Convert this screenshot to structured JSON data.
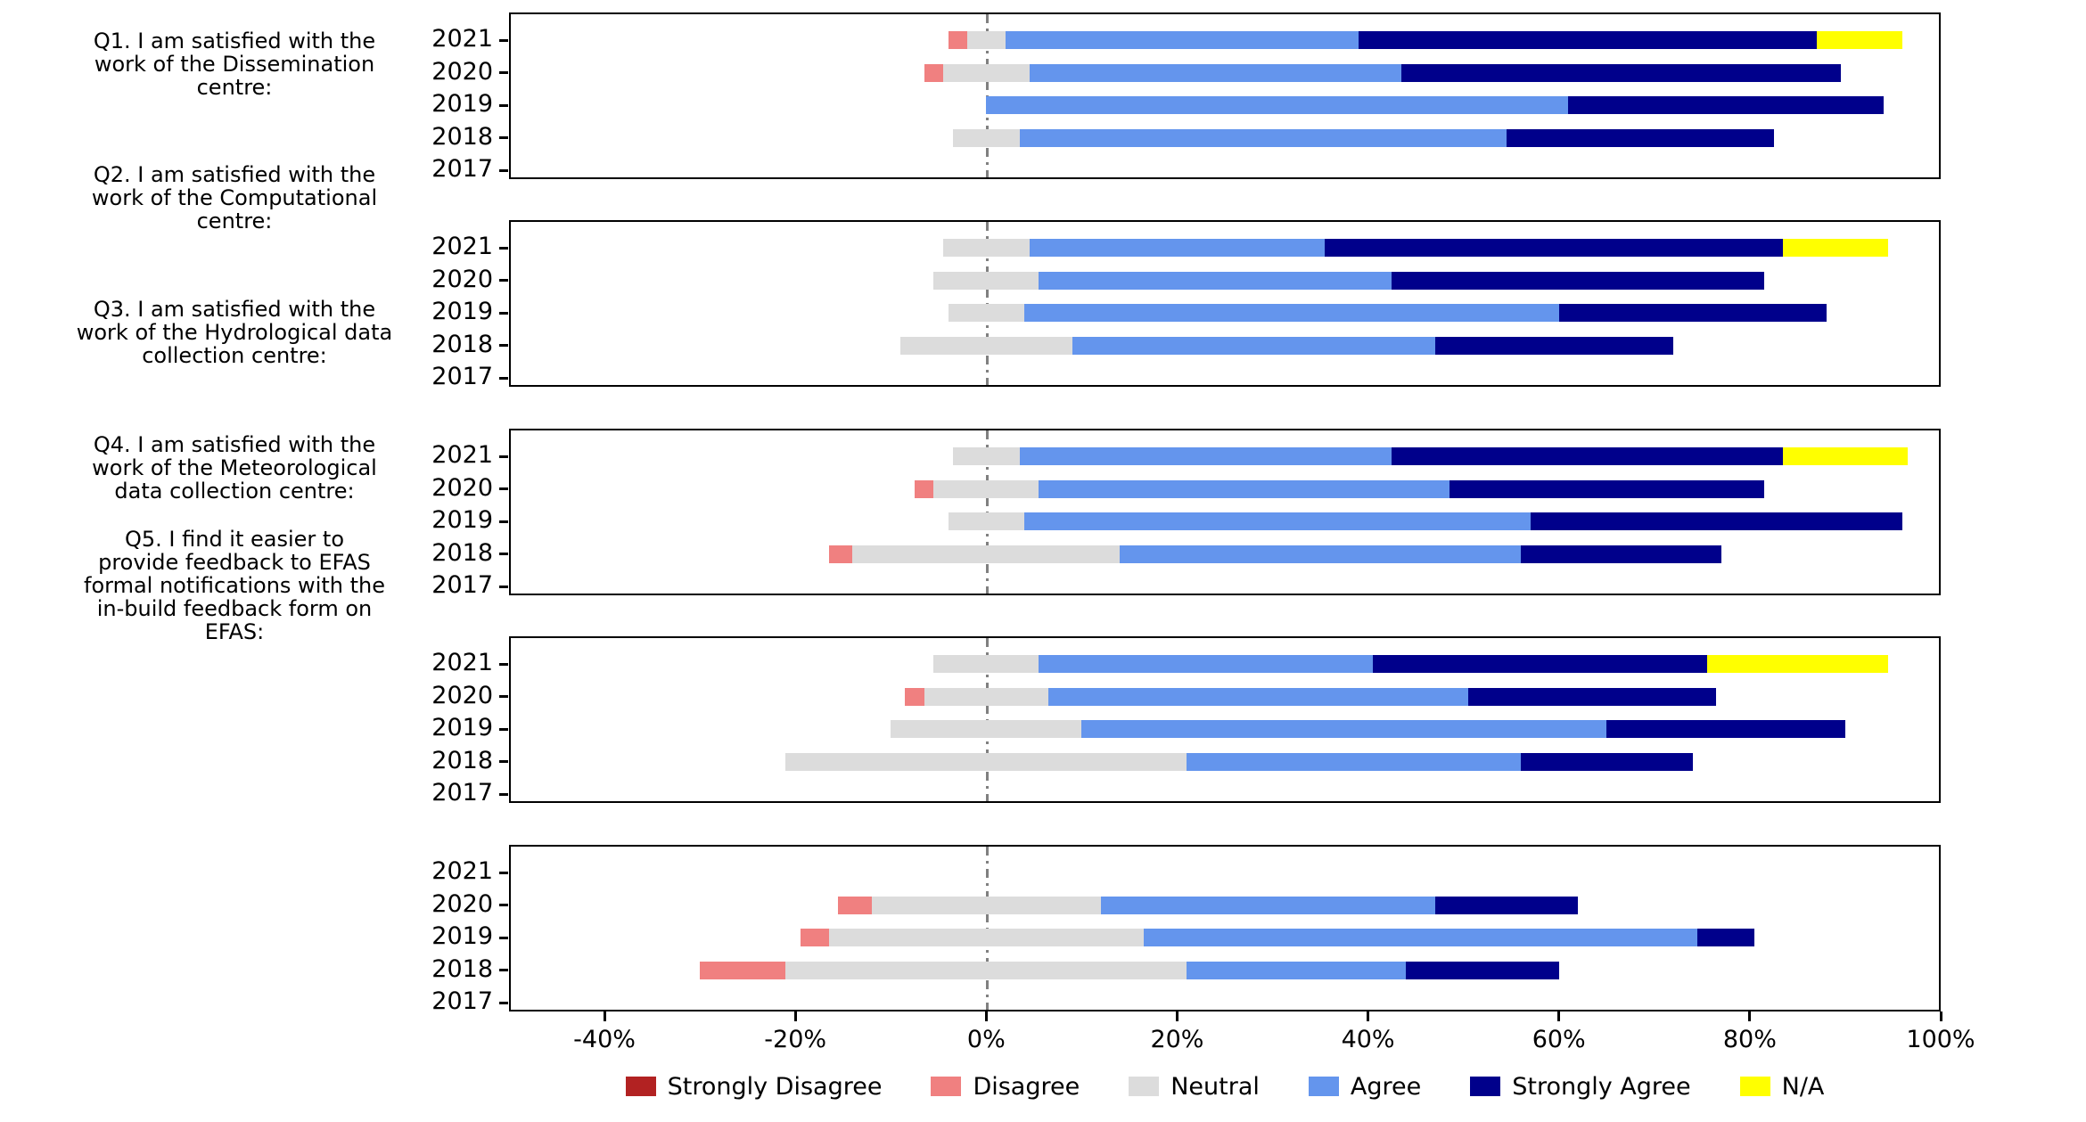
{
  "figure": {
    "background": "#ffffff",
    "zero_line_color": "#808080",
    "axis_color": "#000000"
  },
  "chart_data": {
    "type": "bar",
    "subtype": "horizontal-diverging-stacked-likert",
    "unit": "%",
    "xlim": [
      -50,
      100
    ],
    "x_tick_values": [
      -40,
      -20,
      0,
      20,
      40,
      60,
      80,
      100
    ],
    "x_tick_labels": [
      "-40%",
      "-20%",
      "0%",
      "20%",
      "40%",
      "60%",
      "80%",
      "100%"
    ],
    "grid": false,
    "zero_reference_line": true,
    "neutral_split_on_zero": true,
    "stack_order": [
      "strongly_disagree",
      "disagree",
      "neutral",
      "agree",
      "strongly_agree",
      "na"
    ],
    "colors": {
      "strongly_disagree": "#b22222",
      "disagree": "#f08080",
      "neutral": "#dcdcdc",
      "agree": "#6495ed",
      "strongly_agree": "#00008b",
      "na": "#ffff00"
    },
    "years": [
      "2021",
      "2020",
      "2019",
      "2018",
      "2017"
    ],
    "panels": [
      {
        "id": "q1",
        "question": "Q1. I am satisfied with the work of the Dissemination centre:",
        "question_lines": [
          "Q1. I am satisfied with the",
          "work of the Dissemination",
          "centre:"
        ],
        "rows": [
          {
            "year": "2021",
            "strongly_disagree": 0,
            "disagree": 2,
            "neutral": 4,
            "agree": 37,
            "strongly_agree": 48,
            "na": 9
          },
          {
            "year": "2020",
            "strongly_disagree": 0,
            "disagree": 2,
            "neutral": 9,
            "agree": 39,
            "strongly_agree": 46,
            "na": 0
          },
          {
            "year": "2019",
            "strongly_disagree": 0,
            "disagree": 0,
            "neutral": 0,
            "agree": 61,
            "strongly_agree": 33,
            "na": 0
          },
          {
            "year": "2018",
            "strongly_disagree": 0,
            "disagree": 0,
            "neutral": 7,
            "agree": 51,
            "strongly_agree": 28,
            "na": 0
          },
          {
            "year": "2017",
            "strongly_disagree": 0,
            "disagree": 0,
            "neutral": 0,
            "agree": 0,
            "strongly_agree": 0,
            "na": 0
          }
        ]
      },
      {
        "id": "q2",
        "question": "Q2. I am satisfied with the work of the Computational centre:",
        "question_lines": [
          "Q2. I am satisfied with the",
          "work of the Computational",
          "centre:"
        ],
        "rows": [
          {
            "year": "2021",
            "strongly_disagree": 0,
            "disagree": 0,
            "neutral": 9,
            "agree": 31,
            "strongly_agree": 48,
            "na": 11
          },
          {
            "year": "2020",
            "strongly_disagree": 0,
            "disagree": 0,
            "neutral": 11,
            "agree": 37,
            "strongly_agree": 39,
            "na": 0
          },
          {
            "year": "2019",
            "strongly_disagree": 0,
            "disagree": 0,
            "neutral": 8,
            "agree": 56,
            "strongly_agree": 28,
            "na": 0
          },
          {
            "year": "2018",
            "strongly_disagree": 0,
            "disagree": 0,
            "neutral": 18,
            "agree": 38,
            "strongly_agree": 25,
            "na": 0
          },
          {
            "year": "2017",
            "strongly_disagree": 0,
            "disagree": 0,
            "neutral": 0,
            "agree": 0,
            "strongly_agree": 0,
            "na": 0
          }
        ]
      },
      {
        "id": "q3",
        "question": "Q3. I am satisfied with the work of the Hydrological data collection centre:",
        "question_lines": [
          "Q3. I am satisfied with the",
          "work of the Hydrological data",
          "collection centre:"
        ],
        "rows": [
          {
            "year": "2021",
            "strongly_disagree": 0,
            "disagree": 0,
            "neutral": 7,
            "agree": 39,
            "strongly_agree": 41,
            "na": 13
          },
          {
            "year": "2020",
            "strongly_disagree": 0,
            "disagree": 2,
            "neutral": 11,
            "agree": 43,
            "strongly_agree": 33,
            "na": 0
          },
          {
            "year": "2019",
            "strongly_disagree": 0,
            "disagree": 0,
            "neutral": 8,
            "agree": 53,
            "strongly_agree": 39,
            "na": 0
          },
          {
            "year": "2018",
            "strongly_disagree": 0,
            "disagree": 2.5,
            "neutral": 28,
            "agree": 42,
            "strongly_agree": 21,
            "na": 0
          },
          {
            "year": "2017",
            "strongly_disagree": 0,
            "disagree": 0,
            "neutral": 0,
            "agree": 0,
            "strongly_agree": 0,
            "na": 0
          }
        ]
      },
      {
        "id": "q4",
        "question": "Q4. I am satisfied with the work of the Meteorological data collection centre:",
        "question_lines": [
          "Q4. I am satisfied with the",
          "work of the Meteorological",
          "data collection centre:"
        ],
        "rows": [
          {
            "year": "2021",
            "strongly_disagree": 0,
            "disagree": 0,
            "neutral": 11,
            "agree": 35,
            "strongly_agree": 35,
            "na": 19
          },
          {
            "year": "2020",
            "strongly_disagree": 0,
            "disagree": 2,
            "neutral": 13,
            "agree": 44,
            "strongly_agree": 26,
            "na": 0
          },
          {
            "year": "2019",
            "strongly_disagree": 0,
            "disagree": 0,
            "neutral": 20,
            "agree": 55,
            "strongly_agree": 25,
            "na": 0
          },
          {
            "year": "2018",
            "strongly_disagree": 0,
            "disagree": 0,
            "neutral": 42,
            "agree": 35,
            "strongly_agree": 18,
            "na": 0
          },
          {
            "year": "2017",
            "strongly_disagree": 0,
            "disagree": 0,
            "neutral": 0,
            "agree": 0,
            "strongly_agree": 0,
            "na": 0
          }
        ]
      },
      {
        "id": "q5",
        "question": "Q5. I find it easier to provide feedback to EFAS formal notifications with the in-build feedback form on EFAS:",
        "question_lines": [
          "Q5. I find it easier to",
          "provide feedback to EFAS",
          "formal notifications with the",
          "in-build feedback form on",
          "EFAS:"
        ],
        "rows": [
          {
            "year": "2021",
            "strongly_disagree": 0,
            "disagree": 0,
            "neutral": 0,
            "agree": 0,
            "strongly_agree": 0,
            "na": 0
          },
          {
            "year": "2020",
            "strongly_disagree": 0,
            "disagree": 3.5,
            "neutral": 24,
            "agree": 35,
            "strongly_agree": 15,
            "na": 0
          },
          {
            "year": "2019",
            "strongly_disagree": 0,
            "disagree": 3,
            "neutral": 33,
            "agree": 58,
            "strongly_agree": 6,
            "na": 0
          },
          {
            "year": "2018",
            "strongly_disagree": 0,
            "disagree": 9,
            "neutral": 42,
            "agree": 23,
            "strongly_agree": 16,
            "na": 0
          },
          {
            "year": "2017",
            "strongly_disagree": 0,
            "disagree": 0,
            "neutral": 0,
            "agree": 0,
            "strongly_agree": 0,
            "na": 0
          }
        ]
      }
    ]
  },
  "legend": {
    "items": [
      {
        "key": "strongly_disagree",
        "label": "Strongly Disagree",
        "color": "#b22222"
      },
      {
        "key": "disagree",
        "label": "Disagree",
        "color": "#f08080"
      },
      {
        "key": "neutral",
        "label": "Neutral",
        "color": "#dcdcdc"
      },
      {
        "key": "agree",
        "label": "Agree",
        "color": "#6495ed"
      },
      {
        "key": "strongly_agree",
        "label": "Strongly Agree",
        "color": "#00008b"
      },
      {
        "key": "na",
        "label": "N/A",
        "color": "#ffff00"
      }
    ]
  }
}
